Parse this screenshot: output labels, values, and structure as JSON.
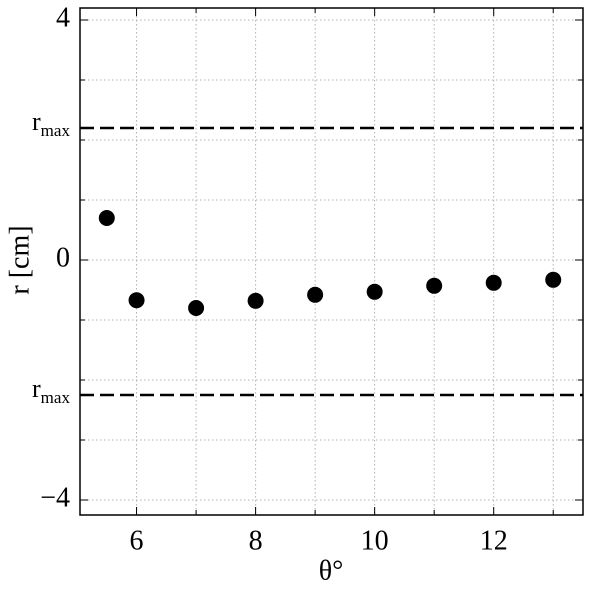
{
  "chart_data": {
    "type": "scatter",
    "xlabel": "θ°",
    "ylabel": "r [cm]",
    "x": [
      5.5,
      6,
      7,
      8,
      9,
      10,
      11,
      12,
      13
    ],
    "series": [
      {
        "color": "#000000",
        "values": [
          0.7,
          -0.67,
          -0.8,
          -0.68,
          -0.58,
          -0.53,
          -0.43,
          -0.38,
          -0.33
        ]
      }
    ],
    "xlim": [
      5.05,
      13.5
    ],
    "ylim": [
      -4.25,
      4.2
    ],
    "xticks": [
      6,
      8,
      10,
      12
    ],
    "yticks": [
      -4,
      0,
      4
    ],
    "xminor_ticks": [
      7,
      9,
      11,
      13
    ],
    "yminor_ticks": [
      -3,
      -2,
      -1,
      1,
      2,
      3
    ],
    "grid": true,
    "hlines": [
      {
        "y": 2.2,
        "label": "r",
        "subscript": "max"
      },
      {
        "y": -2.25,
        "label": "r",
        "subscript": "max"
      }
    ]
  }
}
